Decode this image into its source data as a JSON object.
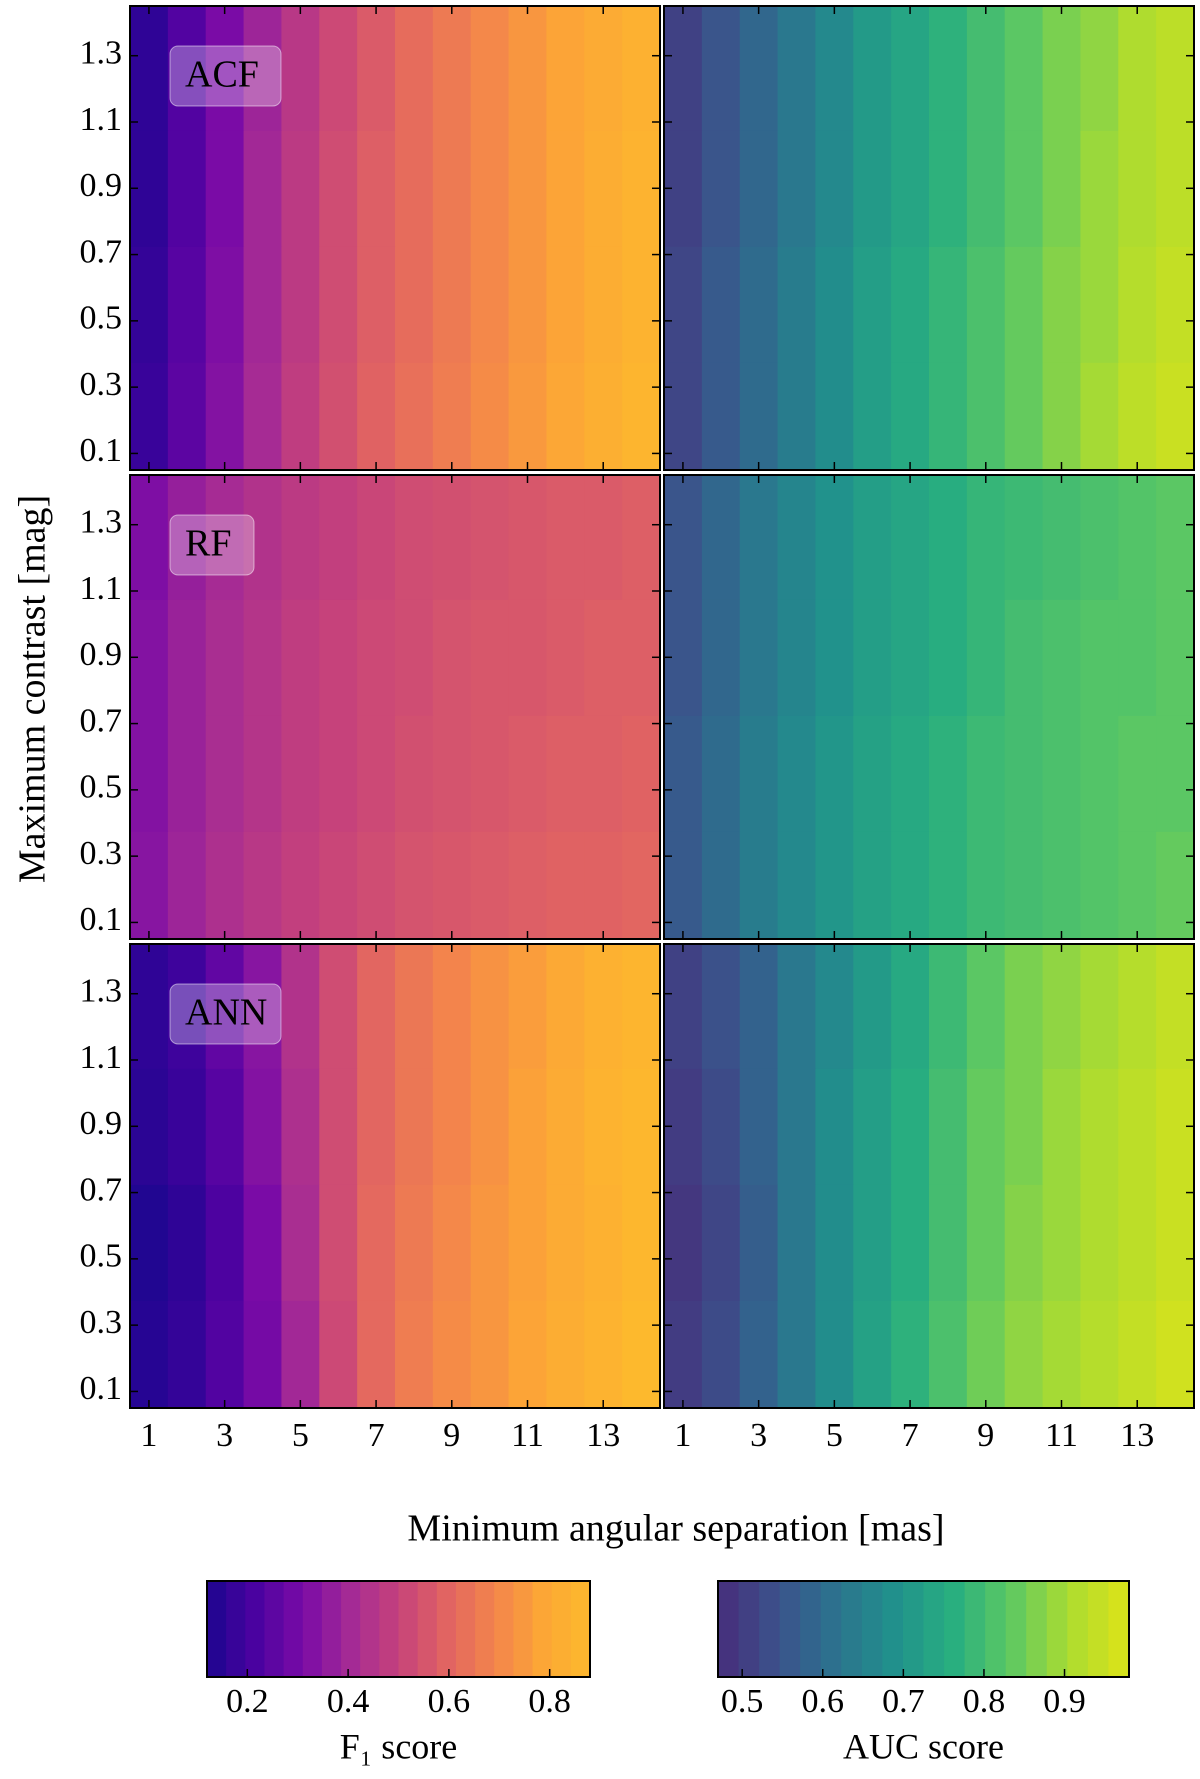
{
  "chart_data": {
    "type": "contour",
    "xlabel": "Minimum angular separation [mas]",
    "ylabel": "Maximum contrast [mag]",
    "xlim": [
      0.5,
      14.5
    ],
    "ylim": [
      0.05,
      1.45
    ],
    "xticks": [
      1,
      3,
      5,
      7,
      9,
      11,
      13
    ],
    "yticks": [
      0.1,
      0.3,
      0.5,
      0.7,
      0.9,
      1.1,
      1.3
    ],
    "x": [
      1,
      2,
      3,
      4,
      5,
      6,
      7,
      8,
      9,
      10,
      11,
      12,
      13,
      14
    ],
    "y": [
      0.2,
      0.55,
      0.9,
      1.25
    ],
    "panels": [
      {
        "label": "ACF",
        "colorbar": 0,
        "z": [
          [
            0.18,
            0.25,
            0.33,
            0.41,
            0.48,
            0.54,
            0.59,
            0.63,
            0.67,
            0.71,
            0.75,
            0.79,
            0.83,
            0.86
          ],
          [
            0.17,
            0.24,
            0.32,
            0.4,
            0.47,
            0.53,
            0.58,
            0.62,
            0.66,
            0.7,
            0.74,
            0.78,
            0.82,
            0.85
          ],
          [
            0.16,
            0.23,
            0.31,
            0.4,
            0.47,
            0.53,
            0.58,
            0.62,
            0.66,
            0.7,
            0.74,
            0.78,
            0.82,
            0.85
          ],
          [
            0.16,
            0.23,
            0.31,
            0.39,
            0.46,
            0.52,
            0.57,
            0.62,
            0.66,
            0.7,
            0.74,
            0.78,
            0.81,
            0.84
          ]
        ]
      },
      {
        "colorbar": 1,
        "z": [
          [
            0.52,
            0.56,
            0.6,
            0.64,
            0.68,
            0.72,
            0.75,
            0.78,
            0.81,
            0.84,
            0.87,
            0.9,
            0.93,
            0.95
          ],
          [
            0.52,
            0.56,
            0.6,
            0.64,
            0.68,
            0.72,
            0.75,
            0.78,
            0.81,
            0.84,
            0.87,
            0.89,
            0.92,
            0.94
          ],
          [
            0.51,
            0.55,
            0.59,
            0.63,
            0.67,
            0.71,
            0.74,
            0.77,
            0.8,
            0.83,
            0.86,
            0.89,
            0.91,
            0.93
          ],
          [
            0.51,
            0.55,
            0.59,
            0.63,
            0.67,
            0.71,
            0.74,
            0.77,
            0.8,
            0.83,
            0.86,
            0.88,
            0.91,
            0.93
          ]
        ]
      },
      {
        "label": "RF",
        "colorbar": 0,
        "z": [
          [
            0.34,
            0.39,
            0.43,
            0.46,
            0.49,
            0.51,
            0.53,
            0.55,
            0.56,
            0.57,
            0.58,
            0.59,
            0.59,
            0.6
          ],
          [
            0.33,
            0.38,
            0.42,
            0.45,
            0.48,
            0.5,
            0.52,
            0.54,
            0.55,
            0.56,
            0.57,
            0.58,
            0.58,
            0.59
          ],
          [
            0.33,
            0.38,
            0.42,
            0.45,
            0.48,
            0.5,
            0.52,
            0.53,
            0.55,
            0.56,
            0.56,
            0.57,
            0.58,
            0.58
          ],
          [
            0.32,
            0.37,
            0.41,
            0.44,
            0.47,
            0.49,
            0.51,
            0.53,
            0.54,
            0.55,
            0.56,
            0.57,
            0.57,
            0.58
          ]
        ]
      },
      {
        "colorbar": 1,
        "z": [
          [
            0.56,
            0.6,
            0.64,
            0.67,
            0.7,
            0.73,
            0.75,
            0.77,
            0.79,
            0.8,
            0.81,
            0.82,
            0.83,
            0.84
          ],
          [
            0.56,
            0.6,
            0.64,
            0.67,
            0.7,
            0.73,
            0.75,
            0.77,
            0.79,
            0.8,
            0.81,
            0.82,
            0.83,
            0.83
          ],
          [
            0.55,
            0.59,
            0.63,
            0.66,
            0.69,
            0.72,
            0.74,
            0.76,
            0.78,
            0.8,
            0.81,
            0.82,
            0.82,
            0.83
          ],
          [
            0.55,
            0.59,
            0.63,
            0.66,
            0.69,
            0.72,
            0.74,
            0.76,
            0.78,
            0.79,
            0.8,
            0.81,
            0.82,
            0.83
          ]
        ]
      },
      {
        "label": "ANN",
        "colorbar": 0,
        "z": [
          [
            0.14,
            0.17,
            0.23,
            0.3,
            0.4,
            0.52,
            0.61,
            0.67,
            0.71,
            0.74,
            0.78,
            0.82,
            0.85,
            0.88
          ],
          [
            0.13,
            0.16,
            0.22,
            0.31,
            0.42,
            0.53,
            0.61,
            0.66,
            0.7,
            0.74,
            0.77,
            0.81,
            0.84,
            0.87
          ],
          [
            0.15,
            0.18,
            0.24,
            0.33,
            0.43,
            0.53,
            0.6,
            0.65,
            0.69,
            0.73,
            0.77,
            0.81,
            0.85,
            0.87
          ],
          [
            0.16,
            0.19,
            0.26,
            0.34,
            0.44,
            0.53,
            0.6,
            0.65,
            0.69,
            0.73,
            0.76,
            0.8,
            0.84,
            0.86
          ]
        ]
      },
      {
        "colorbar": 1,
        "z": [
          [
            0.5,
            0.53,
            0.58,
            0.63,
            0.68,
            0.73,
            0.77,
            0.81,
            0.85,
            0.88,
            0.9,
            0.92,
            0.94,
            0.96
          ],
          [
            0.49,
            0.52,
            0.57,
            0.63,
            0.68,
            0.72,
            0.76,
            0.8,
            0.84,
            0.87,
            0.89,
            0.91,
            0.93,
            0.95
          ],
          [
            0.5,
            0.53,
            0.58,
            0.63,
            0.68,
            0.72,
            0.76,
            0.8,
            0.84,
            0.86,
            0.89,
            0.91,
            0.93,
            0.95
          ],
          [
            0.51,
            0.54,
            0.58,
            0.63,
            0.67,
            0.71,
            0.75,
            0.79,
            0.83,
            0.86,
            0.88,
            0.9,
            0.92,
            0.94
          ]
        ]
      }
    ],
    "colorbars": [
      {
        "label": "F₁ score",
        "clim": [
          0.12,
          0.88
        ],
        "ticks": [
          0.2,
          0.4,
          0.6,
          0.8
        ],
        "colormap": [
          "#1c068f",
          "#4a02a0",
          "#7a0ba6",
          "#a42a95",
          "#c6427b",
          "#e16462",
          "#f3844c",
          "#fca636",
          "#fdb92d"
        ]
      },
      {
        "label": "AUC score",
        "clim": [
          0.47,
          0.98
        ],
        "ticks": [
          0.5,
          0.6,
          0.7,
          0.8,
          0.9
        ],
        "colormap": [
          "#472d7b",
          "#3b528b",
          "#2c728e",
          "#21918c",
          "#28ae80",
          "#5ec962",
          "#addc30",
          "#dde318"
        ]
      }
    ]
  }
}
